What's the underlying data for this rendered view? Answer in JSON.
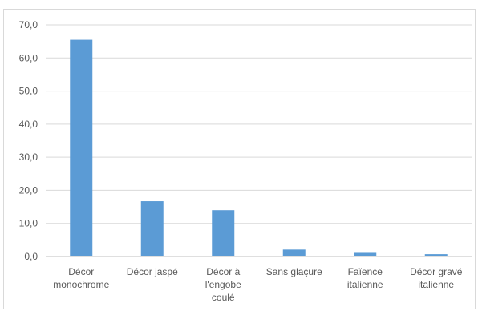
{
  "chart_data": {
    "type": "bar",
    "categories": [
      [
        "Décor",
        "monochrome"
      ],
      [
        "Décor jaspé"
      ],
      [
        "Décor à",
        "l'engobe",
        "coulé"
      ],
      [
        "Sans glaçure"
      ],
      [
        "Faïence",
        "italienne"
      ],
      [
        "Décor gravé",
        "italienne"
      ]
    ],
    "values": [
      65.5,
      16.7,
      14.0,
      2.1,
      1.1,
      0.7
    ],
    "ylim": [
      0,
      70
    ],
    "yticks": [
      "0,0",
      "10,0",
      "20,0",
      "30,0",
      "40,0",
      "50,0",
      "60,0",
      "70,0"
    ],
    "grid": true,
    "legend": "none",
    "colors": {
      "bar": "#5b9bd5",
      "grid": "#d9d9d9",
      "axis": "#bfbfbf",
      "text": "#595959"
    }
  }
}
